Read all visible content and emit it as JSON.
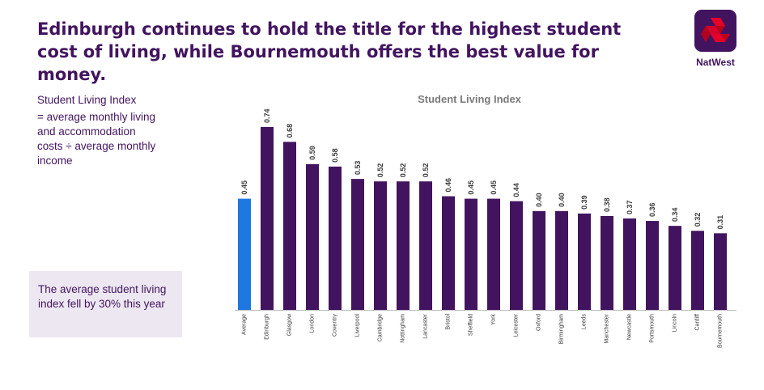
{
  "headline": "Edinburgh continues to hold the title for the highest student cost of living, while Bournemouth offers the best value for money.",
  "brand": {
    "name": "NatWest",
    "color": "#42145f",
    "logo_accent": "#e60028"
  },
  "definition": {
    "term": "Student Living Index",
    "lines": [
      "= average monthly living",
      "and accommodation",
      "costs ÷ average monthly",
      "income"
    ]
  },
  "callout": {
    "text": "The average student living index fell by 30% this year"
  },
  "colors": {
    "bar": "#42145f",
    "highlight": "#1f77e0",
    "axis": "#bfbfbf"
  },
  "chart_data": {
    "type": "bar",
    "title": "Student Living Index",
    "xlabel": "",
    "ylabel": "",
    "ylim": [
      0,
      0.75
    ],
    "grid": false,
    "highlight_category": "Average",
    "categories": [
      "Average",
      "Edinburgh",
      "Glasgow",
      "London",
      "Coventry",
      "Liverpool",
      "Cambridge",
      "Nottingham",
      "Lancaster",
      "Bristol",
      "Sheffield",
      "York",
      "Leicester",
      "Oxford",
      "Birmingham",
      "Leeds",
      "Manchester",
      "Newcastle",
      "Portsmouth",
      "Lincoln",
      "Cardiff",
      "Bournemouth"
    ],
    "values": [
      0.45,
      0.74,
      0.68,
      0.59,
      0.58,
      0.53,
      0.52,
      0.52,
      0.52,
      0.46,
      0.45,
      0.45,
      0.44,
      0.4,
      0.4,
      0.39,
      0.38,
      0.37,
      0.36,
      0.34,
      0.32,
      0.31
    ],
    "value_labels": [
      "0.45",
      "0.74",
      "0.68",
      "0.59",
      "0.58",
      "0.53",
      "0.52",
      "0.52",
      "0.52",
      "0.46",
      "0.45",
      "0.45",
      "0.44",
      "0.40",
      "0.40",
      "0.39",
      "0.38",
      "0.37",
      "0.36",
      "0.34",
      "0.32",
      "0.31"
    ]
  }
}
